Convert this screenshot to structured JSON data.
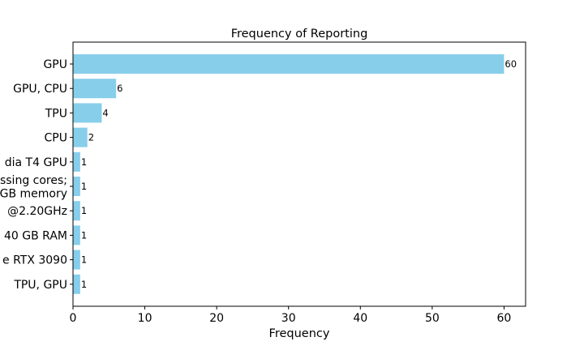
{
  "chart_data": {
    "type": "bar",
    "orientation": "horizontal",
    "title": "Frequency of Reporting",
    "xlabel": "Frequency",
    "ylabel": "",
    "xlim": [
      0,
      63
    ],
    "xticks": [
      0,
      10,
      20,
      30,
      40,
      50,
      60
    ],
    "grid": false,
    "categories": [
      "GPU",
      "GPU, CPU",
      "TPU",
      "CPU",
      "dia T4 GPU",
      "ssing cores;\nGB memory",
      "@2.20GHz",
      "40 GB RAM",
      "e RTX 3090",
      "TPU, GPU"
    ],
    "values": [
      60,
      6,
      4,
      2,
      1,
      1,
      1,
      1,
      1,
      1
    ],
    "bar_color": "#87ceeb",
    "data_labels": true
  }
}
